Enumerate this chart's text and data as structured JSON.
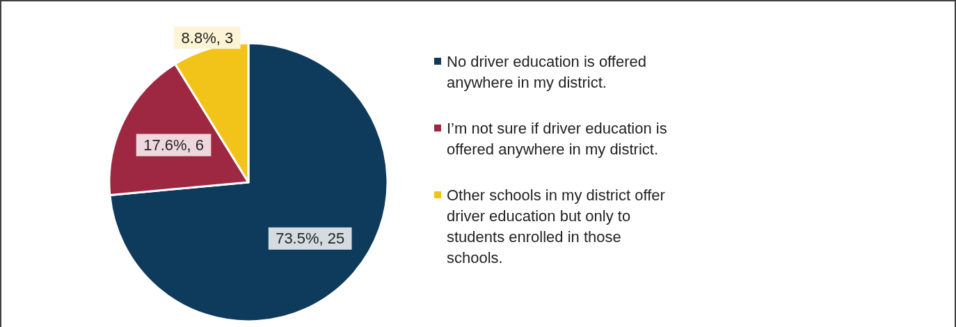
{
  "chart_data": {
    "type": "pie",
    "categories": [
      "No driver education is offered\nanywhere in my district.",
      "I’m not sure if driver education is\noffered anywhere in my district.",
      "Other schools in my district offer\ndriver education but only to\nstudents enrolled in those\nschools."
    ],
    "values": [
      25,
      6,
      3
    ],
    "colors": [
      "#0e3a5c",
      "#9e2842",
      "#f2c318"
    ],
    "value_labels": [
      "73.5%, 25",
      "17.6%, 6",
      "8.8%, 3"
    ],
    "legend": "right"
  }
}
